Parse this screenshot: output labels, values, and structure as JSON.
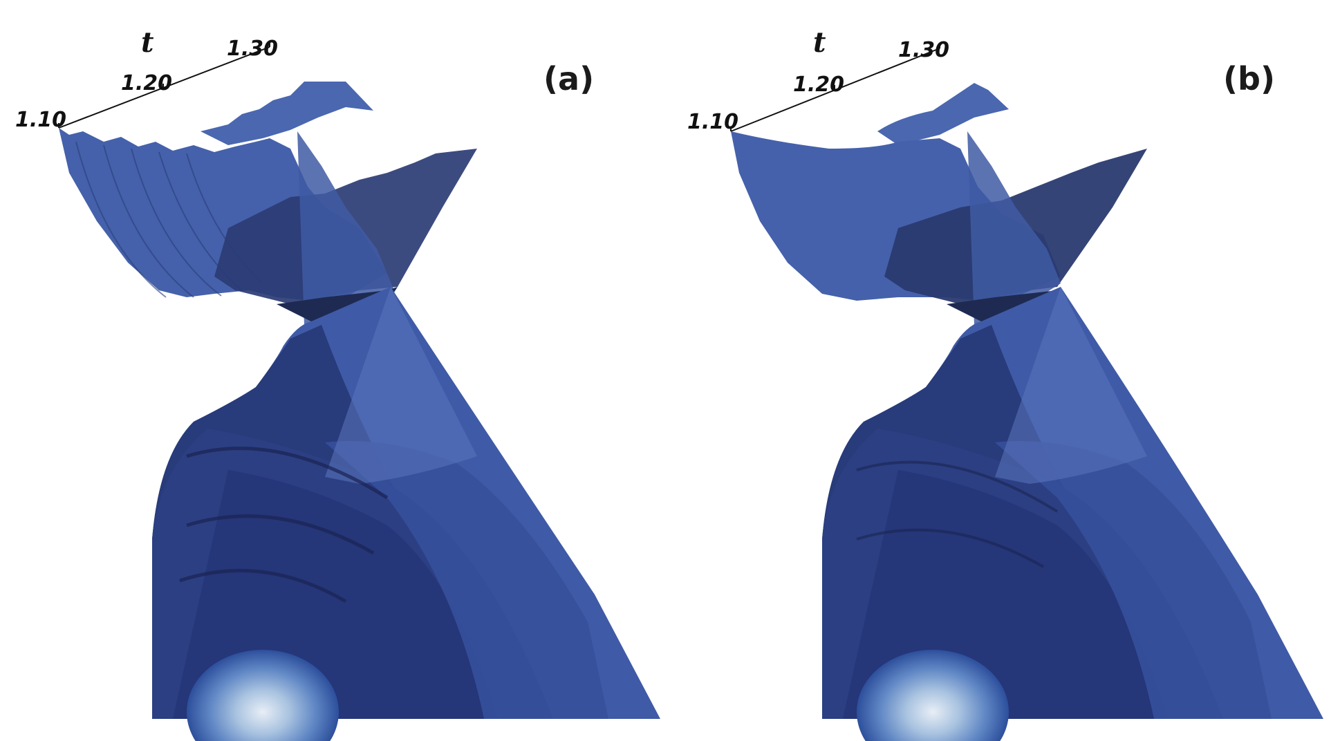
{
  "panels": [
    {
      "label": "(a)",
      "axis": {
        "title": "t",
        "ticks": [
          "1.10",
          "1.20",
          "1.30"
        ]
      }
    },
    {
      "label": "(b)",
      "axis": {
        "title": "t",
        "ticks": [
          "1.10",
          "1.20",
          "1.30"
        ]
      }
    }
  ],
  "colors": {
    "surface_light": "#4c6cb8",
    "surface_mid": "#3a58a2",
    "surface_dark": "#1f2d5c",
    "core_light": "#dde8f3",
    "background": "#ffffff"
  }
}
